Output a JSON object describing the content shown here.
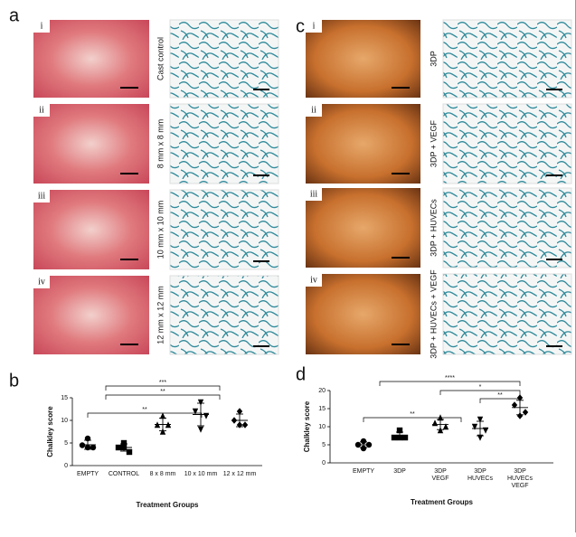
{
  "figure": {
    "panel_a": {
      "letter": "a",
      "rows": [
        {
          "numeral": "i",
          "label": "Cast control"
        },
        {
          "numeral": "ii",
          "label": "8 mm x 8 mm"
        },
        {
          "numeral": "iii",
          "label": "10 mm x 10 mm"
        },
        {
          "numeral": "iv",
          "label": "12 mm x 12 mm"
        }
      ]
    },
    "panel_c": {
      "letter": "c",
      "rows": [
        {
          "numeral": "i",
          "label": "3DP"
        },
        {
          "numeral": "ii",
          "label": "3DP + VEGF"
        },
        {
          "numeral": "iii",
          "label": "3DP + HUVECs"
        },
        {
          "numeral": "iv",
          "label": "3DP + HUVECs + VEGF"
        }
      ]
    }
  },
  "chart_data": [
    {
      "type": "dot",
      "letter": "b",
      "y_label": "Chalkley score",
      "x_label": "Treatment Groups",
      "categories": [
        [
          "EMPTY"
        ],
        [
          "CONTROL"
        ],
        [
          "8 x 8 mm"
        ],
        [
          "10 x 10 mm"
        ],
        [
          "12 x 12 mm"
        ]
      ],
      "markers": [
        "circle",
        "square",
        "triangle-up",
        "triangle-down",
        "diamond"
      ],
      "values": [
        [
          6,
          4.5,
          4,
          4
        ],
        [
          5,
          4,
          3,
          4
        ],
        [
          11,
          9,
          9,
          7.5
        ],
        [
          14,
          12,
          11,
          8
        ],
        [
          12,
          10,
          9,
          9
        ]
      ],
      "means": [
        4.6,
        4,
        9.1,
        11.3,
        10
      ],
      "errors": [
        1,
        0.8,
        1.4,
        2.5,
        1.4
      ],
      "ylim": [
        0,
        15
      ],
      "yticks": [
        0,
        5,
        10,
        15
      ],
      "significance": [
        "***",
        "**",
        "**"
      ],
      "color": "#000000"
    },
    {
      "type": "dot",
      "letter": "d",
      "y_label": "Chalkley score",
      "x_label": "Treatment Groups",
      "categories": [
        [
          "EMPTY"
        ],
        [
          "3DP"
        ],
        [
          "3DP",
          "VEGF"
        ],
        [
          "3DP",
          "HUVECs"
        ],
        [
          "3DP",
          "HUVECs",
          "VEGF"
        ]
      ],
      "markers": [
        "circle",
        "square",
        "triangle-up",
        "triangle-down",
        "diamond"
      ],
      "values": [
        [
          6,
          5,
          5,
          4
        ],
        [
          9,
          7,
          7,
          7
        ],
        [
          12.5,
          11,
          10,
          9
        ],
        [
          12,
          10,
          9,
          7
        ],
        [
          18,
          16,
          14,
          13
        ]
      ],
      "means": [
        5,
        7.5,
        10.6,
        9.5,
        15.3
      ],
      "errors": [
        0.8,
        1,
        1.4,
        2,
        2
      ],
      "ylim": [
        0,
        20
      ],
      "yticks": [
        0,
        5,
        10,
        15,
        20
      ],
      "significance": [
        "****",
        "*",
        "**",
        "**"
      ],
      "color": "#000000"
    }
  ]
}
